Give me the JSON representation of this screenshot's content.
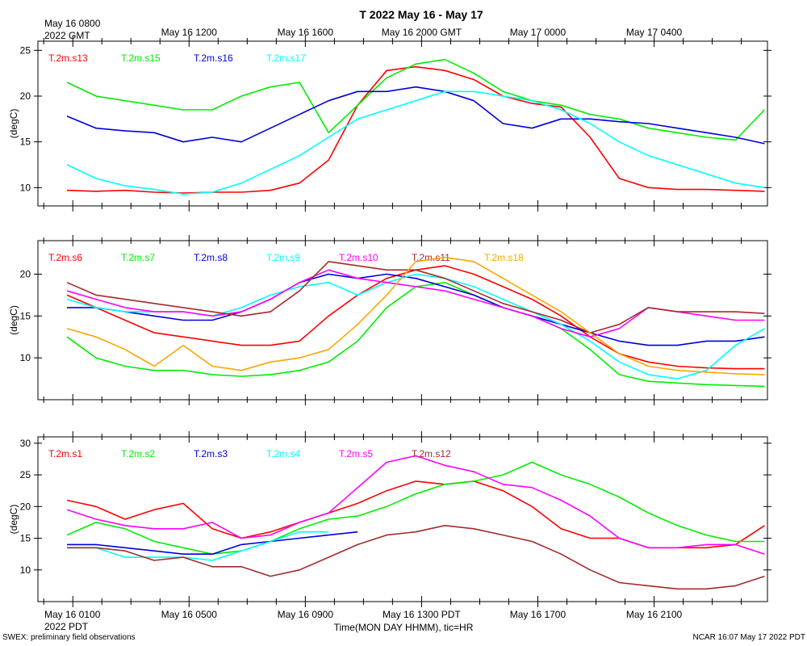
{
  "title": "T 2022 May 16 - May 17",
  "gmt_axis": {
    "first_label": "May 16 0800",
    "first_sub": "2022 GMT",
    "tick_labels": [
      "May 16 1200",
      "May 16 1600",
      "May 16 2000 GMT",
      "May 17 0000",
      "May 17 0400"
    ]
  },
  "pdt_axis": {
    "first_label": "May 16 0100",
    "first_sub": "2022 PDT",
    "tick_labels": [
      "May 16 0500",
      "May 16 0900",
      "May 16 1300 PDT",
      "May 16 1700",
      "May 16 2100"
    ]
  },
  "xlabel": "Time(MON DAY HHMM), tic=HR",
  "footer_left": "SWEX: preliminary field observations",
  "footer_right": "NCAR 16:07 May 17 2022 PDT",
  "colors": {
    "red": "#ff0000",
    "green": "#00ee00",
    "blue": "#0000dd",
    "cyan": "#00ffff",
    "magenta": "#ff00ff",
    "brown": "#a52a2a",
    "orange": "#ffa500"
  },
  "chart_data": [
    {
      "type": "line",
      "ylabel": "(degC)",
      "x_hours_pdt": [
        1.0,
        2.0,
        3.0,
        4.0,
        5.0,
        6.0,
        7.0,
        8.0,
        9.0,
        10.0,
        11.0,
        12.0,
        13.0,
        14.0,
        15.0,
        16.0,
        17.0,
        18.0,
        19.0,
        20.0,
        21.0,
        22.0,
        23.0,
        24.0,
        25.0
      ],
      "ylim": [
        8,
        26
      ],
      "yticks": [
        10,
        15,
        20,
        25
      ],
      "series": [
        {
          "name": "T.2m.s13",
          "color": "#ff0000",
          "values": [
            9.7,
            9.6,
            9.7,
            9.5,
            9.4,
            9.5,
            9.5,
            9.7,
            10.5,
            13.0,
            19.0,
            22.8,
            23.2,
            22.8,
            21.8,
            20.0,
            19.2,
            18.8,
            15.5,
            11.0,
            10.0,
            9.8,
            9.8,
            9.7,
            9.6
          ]
        },
        {
          "name": "T.2m.s15",
          "color": "#00ee00",
          "values": [
            21.5,
            20.0,
            19.5,
            19.0,
            18.5,
            18.5,
            20.0,
            21.0,
            21.5,
            16.0,
            19.0,
            22.0,
            23.5,
            24.0,
            22.5,
            20.5,
            19.5,
            19.0,
            18.0,
            17.5,
            16.5,
            16.0,
            15.5,
            15.2,
            18.5
          ]
        },
        {
          "name": "T.2m.s16",
          "color": "#0000dd",
          "values": [
            17.8,
            16.5,
            16.2,
            16.0,
            15.0,
            15.5,
            15.0,
            16.5,
            18.0,
            19.5,
            20.5,
            20.5,
            21.0,
            20.5,
            19.5,
            17.0,
            16.5,
            17.5,
            17.5,
            17.2,
            17.0,
            16.5,
            16.0,
            15.5,
            14.8
          ]
        },
        {
          "name": "T.2m.s17",
          "color": "#00ffff",
          "values": [
            12.5,
            11.0,
            10.2,
            9.8,
            9.3,
            9.5,
            10.5,
            12.0,
            13.5,
            15.5,
            17.5,
            18.5,
            19.5,
            20.5,
            20.5,
            20.0,
            19.5,
            18.5,
            17.0,
            15.0,
            13.5,
            12.5,
            11.5,
            10.5,
            10.0
          ]
        }
      ]
    },
    {
      "type": "line",
      "ylabel": "(degC)",
      "x_hours_pdt": [
        1.0,
        2.0,
        3.0,
        4.0,
        5.0,
        6.0,
        7.0,
        8.0,
        9.0,
        10.0,
        11.0,
        12.0,
        13.0,
        14.0,
        15.0,
        16.0,
        17.0,
        18.0,
        19.0,
        20.0,
        21.0,
        22.0,
        23.0,
        24.0,
        25.0
      ],
      "ylim": [
        5,
        24
      ],
      "yticks": [
        10,
        15,
        20
      ],
      "series": [
        {
          "name": "T.2m.s6",
          "color": "#ff0000",
          "values": [
            17.5,
            16.0,
            14.5,
            13.0,
            12.5,
            12.0,
            11.5,
            11.5,
            12.0,
            15.0,
            17.5,
            19.5,
            20.5,
            21.0,
            20.0,
            18.5,
            17.0,
            15.0,
            12.5,
            10.5,
            9.5,
            9.0,
            8.8,
            8.7,
            8.7
          ]
        },
        {
          "name": "T.2m.s7",
          "color": "#00ee00",
          "values": [
            12.5,
            10.0,
            9.0,
            8.5,
            8.5,
            8.0,
            7.8,
            8.0,
            8.5,
            9.5,
            12.0,
            16.0,
            18.5,
            19.0,
            17.5,
            16.0,
            15.0,
            13.5,
            11.0,
            8.0,
            7.2,
            7.0,
            6.8,
            6.7,
            6.6
          ]
        },
        {
          "name": "T.2m.s8",
          "color": "#0000dd",
          "values": [
            16.0,
            16.0,
            15.5,
            15.0,
            14.5,
            14.5,
            15.5,
            17.0,
            19.0,
            20.0,
            19.5,
            20.0,
            19.5,
            18.5,
            17.5,
            16.0,
            15.0,
            14.0,
            13.0,
            12.0,
            11.5,
            11.5,
            12.0,
            12.0,
            12.5
          ]
        },
        {
          "name": "T.2m.s9",
          "color": "#00ffff",
          "values": [
            17.0,
            16.0,
            15.5,
            15.5,
            15.5,
            15.0,
            16.0,
            17.5,
            18.5,
            19.0,
            17.5,
            19.0,
            20.0,
            19.5,
            18.5,
            17.0,
            15.5,
            14.0,
            12.0,
            9.5,
            8.0,
            7.5,
            8.5,
            11.5,
            13.5
          ]
        },
        {
          "name": "T.2m.s10",
          "color": "#ff00ff",
          "values": [
            18.0,
            17.0,
            16.0,
            15.5,
            15.5,
            15.0,
            15.5,
            17.0,
            19.0,
            20.5,
            19.5,
            19.0,
            18.5,
            18.0,
            17.0,
            16.0,
            15.0,
            13.5,
            12.5,
            13.5,
            16.0,
            15.5,
            15.0,
            14.5,
            14.5
          ]
        },
        {
          "name": "T.2m.s11",
          "color": "#a52a2a",
          "values": [
            19.0,
            17.5,
            17.0,
            16.5,
            16.0,
            15.5,
            15.0,
            15.5,
            18.0,
            21.5,
            21.0,
            20.5,
            20.5,
            19.5,
            18.0,
            16.5,
            15.5,
            14.5,
            13.0,
            14.0,
            16.0,
            15.5,
            15.5,
            15.5,
            15.3
          ]
        },
        {
          "name": "T.2m.s18",
          "color": "#ffa500",
          "values": [
            13.5,
            12.5,
            11.0,
            9.0,
            11.5,
            9.0,
            8.5,
            9.5,
            10.0,
            11.0,
            14.0,
            17.5,
            21.5,
            22.0,
            21.5,
            19.5,
            17.5,
            15.5,
            13.0,
            10.5,
            9.0,
            8.5,
            8.3,
            8.1,
            8.0
          ]
        }
      ]
    },
    {
      "type": "line",
      "ylabel": "(degC)",
      "x_hours_pdt": [
        1.0,
        2.0,
        3.0,
        4.0,
        5.0,
        6.0,
        7.0,
        8.0,
        9.0,
        10.0,
        11.0,
        12.0,
        13.0,
        14.0,
        15.0,
        16.0,
        17.0,
        18.0,
        19.0,
        20.0,
        21.0,
        22.0,
        23.0,
        24.0,
        25.0
      ],
      "ylim": [
        5,
        31
      ],
      "yticks": [
        10,
        15,
        20,
        25,
        30
      ],
      "series": [
        {
          "name": "T.2m.s1",
          "color": "#ff0000",
          "values": [
            21.0,
            20.0,
            18.0,
            19.5,
            20.5,
            16.5,
            15.0,
            16.0,
            17.5,
            19.0,
            20.5,
            22.5,
            24.0,
            23.5,
            24.0,
            22.5,
            20.0,
            16.5,
            15.0,
            15.0,
            13.5,
            13.5,
            13.5,
            14.0,
            17.0
          ]
        },
        {
          "name": "T.2m.s2",
          "color": "#00ee00",
          "values": [
            15.5,
            17.5,
            16.5,
            14.5,
            13.5,
            12.5,
            13.0,
            14.5,
            16.5,
            18.0,
            18.5,
            20.0,
            22.0,
            23.5,
            24.0,
            25.0,
            27.0,
            25.0,
            23.5,
            21.5,
            19.0,
            17.0,
            15.5,
            14.5,
            14.5
          ]
        },
        {
          "name": "T.2m.s3",
          "color": "#0000dd",
          "values": [
            14.0,
            14.0,
            13.5,
            13.0,
            12.5,
            12.5,
            14.0,
            14.5,
            15.0,
            15.5,
            16.0,
            null,
            null,
            null,
            null,
            null,
            null,
            null,
            null,
            null,
            null,
            null,
            null,
            null,
            null
          ]
        },
        {
          "name": "T.2m.s4",
          "color": "#00ffff",
          "values": [
            13.5,
            13.5,
            12.0,
            12.0,
            12.0,
            11.5,
            13.0,
            14.5,
            16.0,
            16.0,
            null,
            null,
            null,
            null,
            null,
            null,
            null,
            null,
            null,
            null,
            null,
            null,
            null,
            null,
            null
          ]
        },
        {
          "name": "T.2m.s5",
          "color": "#ff00ff",
          "values": [
            19.5,
            18.0,
            17.0,
            16.5,
            16.5,
            17.5,
            15.0,
            15.5,
            17.5,
            19.0,
            23.0,
            27.0,
            28.0,
            26.5,
            25.5,
            23.5,
            23.0,
            21.0,
            18.5,
            15.0,
            13.5,
            13.5,
            14.0,
            14.0,
            12.5
          ]
        },
        {
          "name": "T.2m.s12",
          "color": "#a52a2a",
          "values": [
            13.5,
            13.5,
            13.0,
            11.5,
            12.0,
            10.5,
            10.5,
            9.0,
            10.0,
            12.0,
            14.0,
            15.5,
            16.0,
            17.0,
            16.5,
            15.5,
            14.5,
            12.5,
            10.0,
            8.0,
            7.5,
            7.0,
            7.0,
            7.5,
            9.0
          ]
        }
      ]
    }
  ]
}
